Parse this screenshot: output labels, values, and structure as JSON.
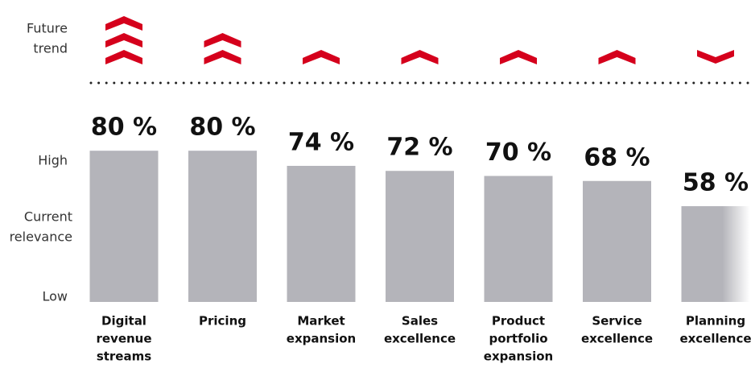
{
  "chart_data": {
    "type": "bar",
    "categories": [
      [
        "Digital",
        "revenue",
        "streams"
      ],
      [
        "Pricing"
      ],
      [
        "Market",
        "expansion"
      ],
      [
        "Sales",
        "excellence"
      ],
      [
        "Product",
        "portfolio",
        "expansion"
      ],
      [
        "Service",
        "excellence"
      ],
      [
        "Planning",
        "excellence"
      ]
    ],
    "values": [
      80,
      80,
      74,
      72,
      70,
      68,
      58
    ],
    "value_labels": [
      "80 %",
      "80 %",
      "74 %",
      "72 %",
      "70 %",
      "68 %",
      "58 %"
    ],
    "trend": [
      3,
      2,
      1,
      1,
      1,
      1,
      -1
    ],
    "color": "#b4b4ba",
    "trend_color": "#d5001c",
    "ylim": [
      20,
      80
    ],
    "trend_label": [
      "Future",
      "trend"
    ],
    "high_label": "High",
    "axis_label": [
      "Current",
      "relevance"
    ],
    "low_label": "Low"
  }
}
